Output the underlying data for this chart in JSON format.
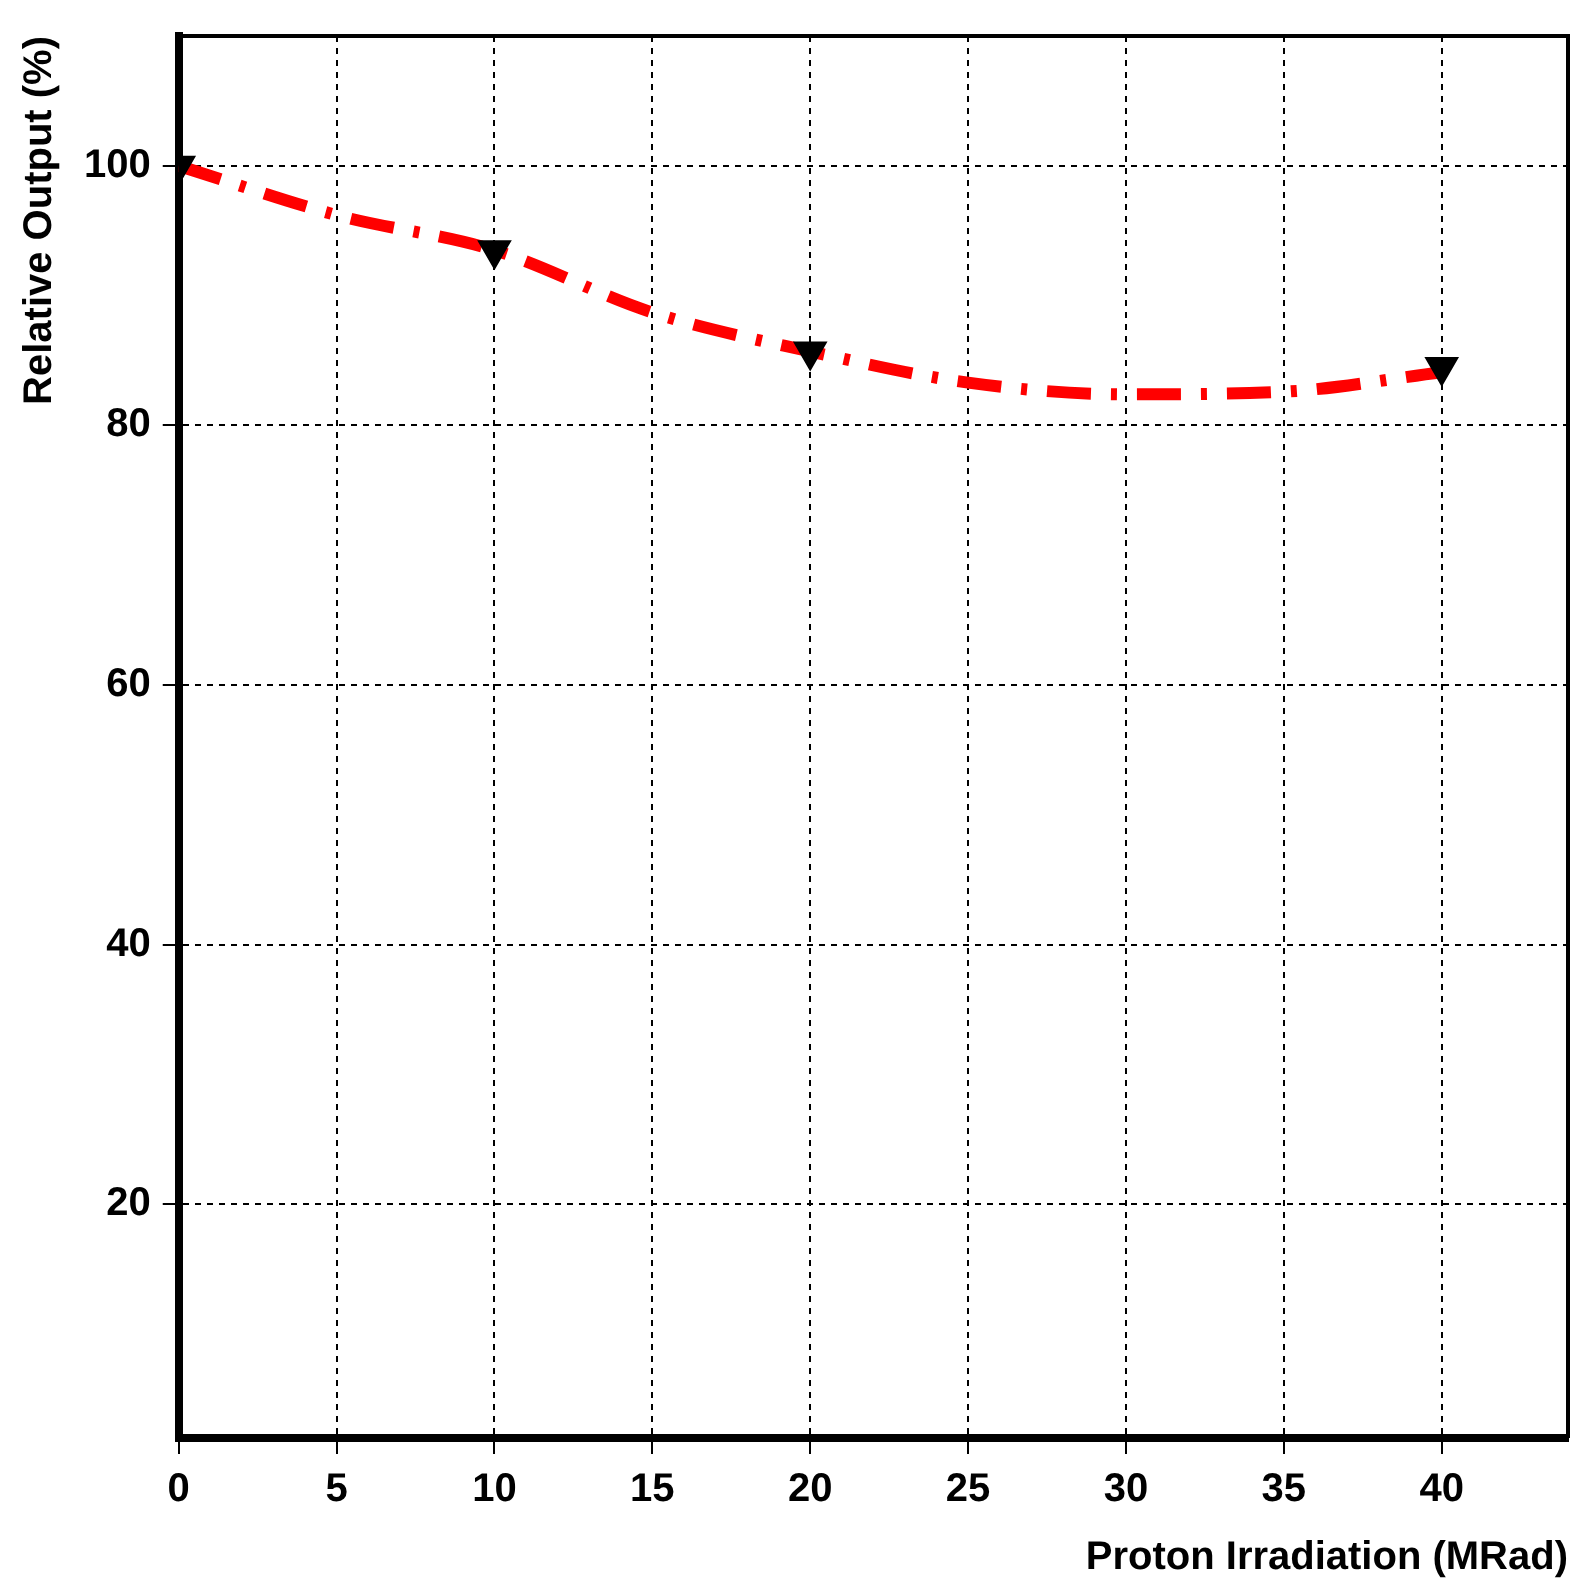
{
  "chart_data": {
    "type": "scatter",
    "xlabel": "Proton Irradiation (MRad)",
    "ylabel": "Relative Output (%)",
    "xlim": [
      0,
      44
    ],
    "ylim": [
      2,
      110
    ],
    "xticks": [
      0,
      5,
      10,
      15,
      20,
      25,
      30,
      35,
      40
    ],
    "yticks": [
      20,
      40,
      60,
      80,
      100
    ],
    "grid": true,
    "series": [
      {
        "type": "line",
        "color": "#ff0000",
        "line_style": "dashed",
        "marker": "none",
        "x": [
          0,
          5,
          10,
          15,
          20,
          25,
          30,
          35,
          40
        ],
        "values": [
          100,
          96.2,
          93.5,
          88.7,
          85.7,
          83.3,
          82.4,
          82.6,
          84.1
        ]
      },
      {
        "type": "scatter",
        "color": "#000000",
        "marker": "triangle",
        "x": [
          0,
          10,
          20,
          40
        ],
        "values": [
          100,
          93.5,
          85.7,
          84.5
        ]
      }
    ]
  }
}
